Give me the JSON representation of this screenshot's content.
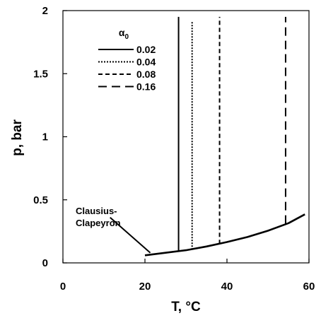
{
  "chart_data": {
    "type": "line",
    "xlabel": "T, °C",
    "ylabel": "p, bar",
    "xlim": [
      0,
      60
    ],
    "ylim": [
      0,
      2
    ],
    "xticks": [
      0,
      20,
      40,
      60
    ],
    "yticks": [
      0,
      0.5,
      1,
      1.5,
      2
    ],
    "xtick_labels": [
      "0",
      "20",
      "40",
      "60"
    ],
    "ytick_labels": [
      "0",
      "0.5",
      "1",
      "1.5",
      "2"
    ],
    "grid": false,
    "legend": {
      "title_main": "α",
      "title_sub": "0",
      "position": "top-left",
      "entries": [
        {
          "label": "0.02",
          "style": "solid"
        },
        {
          "label": "0.04",
          "style": "dotted"
        },
        {
          "label": "0.08",
          "style": "short-dash"
        },
        {
          "label": "0.16",
          "style": "long-dash"
        }
      ]
    },
    "series": [
      {
        "name": "0.02",
        "style": "solid",
        "x": [
          28.2,
          28.2
        ],
        "y": [
          0.09,
          1.95
        ]
      },
      {
        "name": "0.04",
        "style": "dotted",
        "x": [
          31.5,
          31.5
        ],
        "y": [
          0.105,
          1.92
        ]
      },
      {
        "name": "0.08",
        "style": "short-dash",
        "x": [
          38.2,
          38.2
        ],
        "y": [
          0.15,
          1.95
        ]
      },
      {
        "name": "0.16",
        "style": "long-dash",
        "x": [
          54.3,
          54.3
        ],
        "y": [
          0.31,
          1.95
        ]
      }
    ],
    "curve": {
      "name": "Clausius-Clapeyron",
      "x": [
        20,
        25,
        30,
        35,
        40,
        45,
        50,
        55,
        59
      ],
      "y": [
        0.06,
        0.08,
        0.1,
        0.13,
        0.165,
        0.205,
        0.255,
        0.315,
        0.385
      ]
    },
    "annotation": {
      "line1": "Clausius-",
      "line2": "Clapeyron",
      "pointer_from": [
        11.5,
        0.36
      ],
      "pointer_to": [
        21.3,
        0.08
      ]
    }
  }
}
